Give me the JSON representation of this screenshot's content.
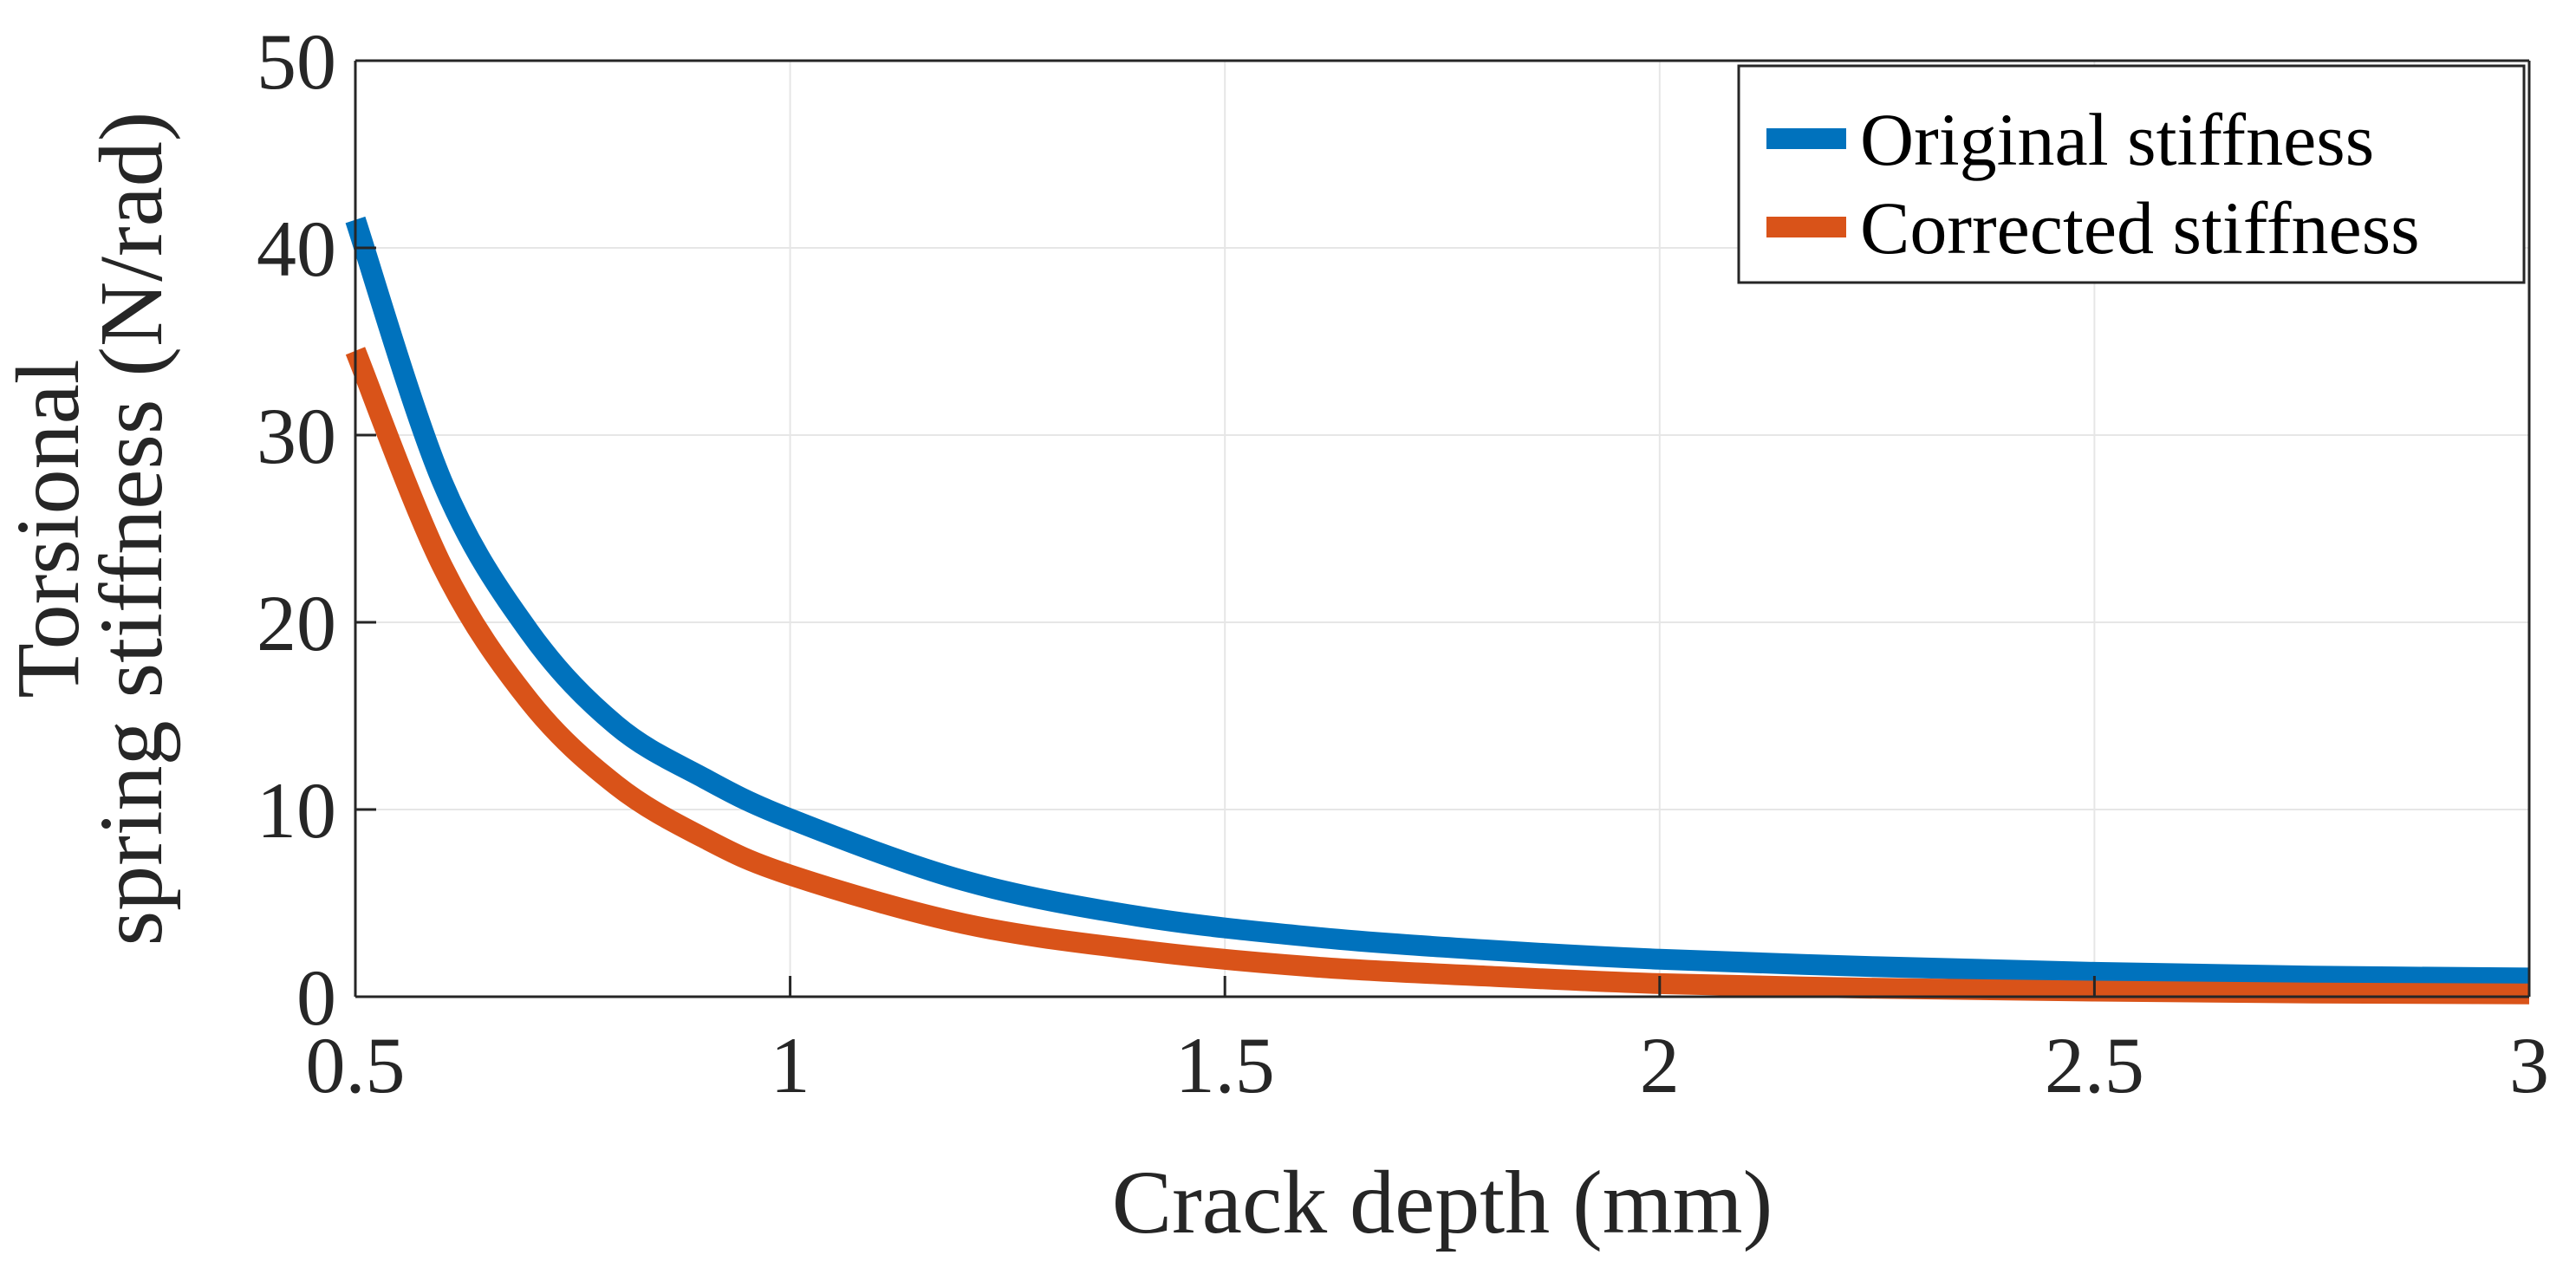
{
  "chart_data": {
    "type": "line",
    "title": "",
    "xlabel": "Crack depth (mm)",
    "ylabel_lines": [
      "Torsional",
      "spring stiffness (N/rad)"
    ],
    "xlim": [
      0.5,
      3
    ],
    "ylim": [
      0,
      50
    ],
    "grid": true,
    "xticks": [
      0.5,
      1,
      1.5,
      2,
      2.5,
      3
    ],
    "xtick_labels": [
      "0.5",
      "1",
      "1.5",
      "2",
      "2.5",
      "3"
    ],
    "yticks": [
      0,
      10,
      20,
      30,
      40,
      50
    ],
    "ytick_labels": [
      "0",
      "10",
      "20",
      "30",
      "40",
      "50"
    ],
    "legend_position": "top-right",
    "x": [
      0.5,
      0.6,
      0.7,
      0.8,
      0.9,
      1.0,
      1.2,
      1.4,
      1.6,
      1.8,
      2.0,
      2.25,
      2.5,
      2.75,
      3.0
    ],
    "series": [
      {
        "name": "Original stiffness",
        "color": "#0072BD",
        "values": [
          41.5,
          27.5,
          19.5,
          14.5,
          11.7,
          9.5,
          6.2,
          4.3,
          3.2,
          2.5,
          2.0,
          1.6,
          1.3,
          1.1,
          1.0
        ]
      },
      {
        "name": "Corrected stiffness",
        "color": "#D95319",
        "values": [
          34.5,
          23.0,
          15.8,
          11.3,
          8.5,
          6.5,
          3.9,
          2.5,
          1.6,
          1.1,
          0.7,
          0.45,
          0.3,
          0.2,
          0.15
        ]
      }
    ]
  }
}
